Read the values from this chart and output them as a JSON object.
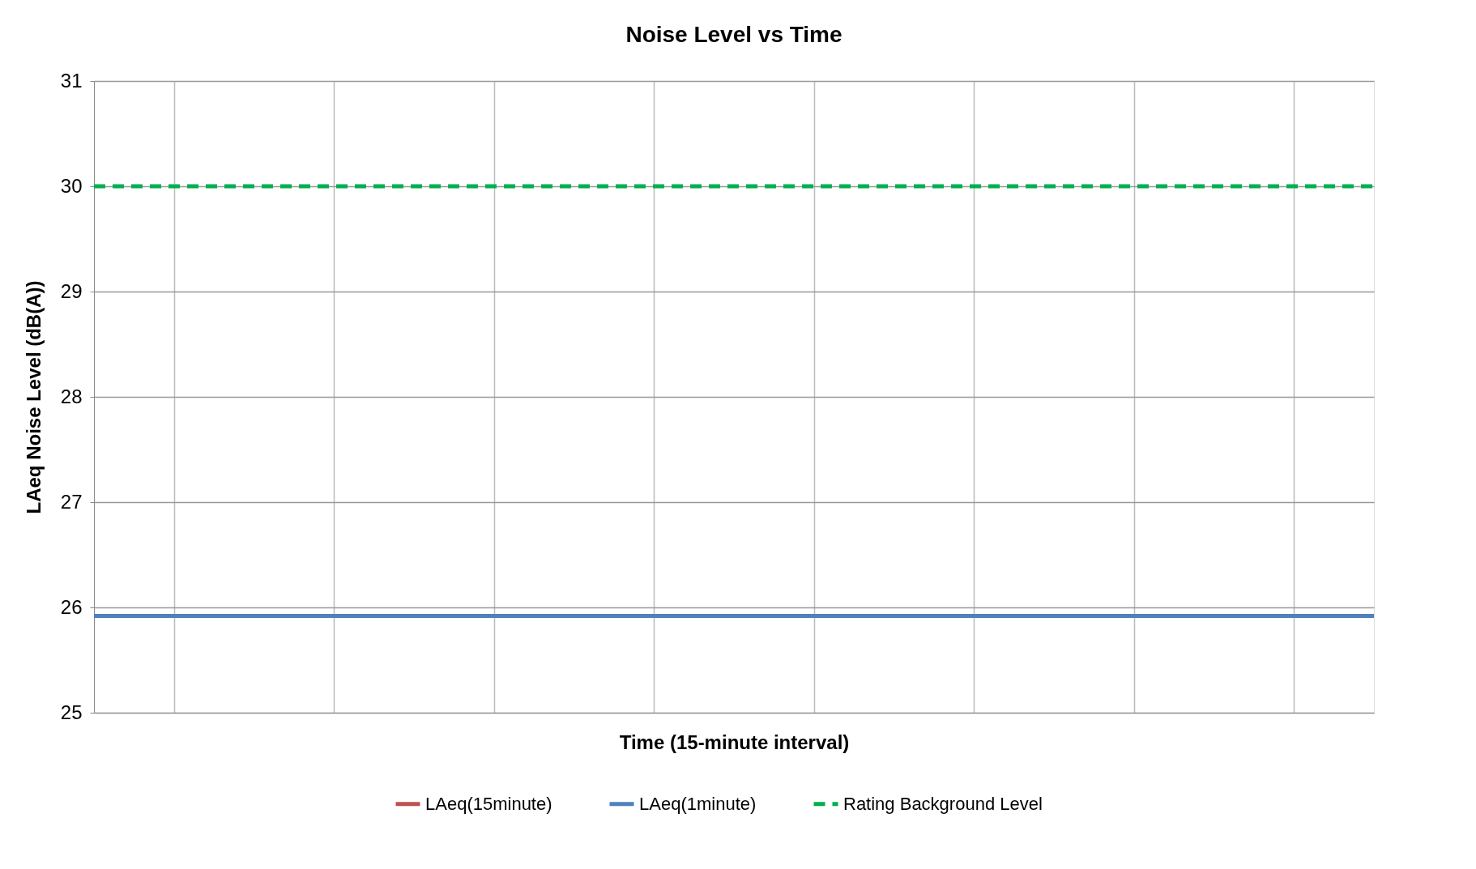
{
  "chart_data": {
    "type": "line",
    "title": "Noise Level  vs Time",
    "xlabel": "Time (15-minute interval)",
    "ylabel": "LAeq Noise Level (dB(A))",
    "categories": [
      null,
      null,
      null,
      null,
      null,
      null,
      null,
      null,
      null
    ],
    "ylim": [
      25,
      31
    ],
    "yticks": [
      25,
      26,
      27,
      28,
      29,
      30,
      31
    ],
    "series": [
      {
        "name": "LAeq(15minute)",
        "color": "#c0504d",
        "values": [
          null,
          null,
          null,
          null,
          null,
          null,
          null,
          null,
          null
        ]
      },
      {
        "name": "LAeq(1minute)",
        "color": "#4f81bd",
        "values": [
          25.92,
          25.92,
          25.92,
          25.92,
          25.92,
          25.92,
          25.92,
          25.92,
          25.92
        ]
      },
      {
        "name": "Rating Background Level",
        "color": "#00b050",
        "values": [
          30,
          30,
          30,
          30,
          30,
          30,
          30,
          30,
          30
        ],
        "line_style": "dashed"
      }
    ],
    "grid": true,
    "legend": "bottom",
    "tick_labels": "y"
  }
}
